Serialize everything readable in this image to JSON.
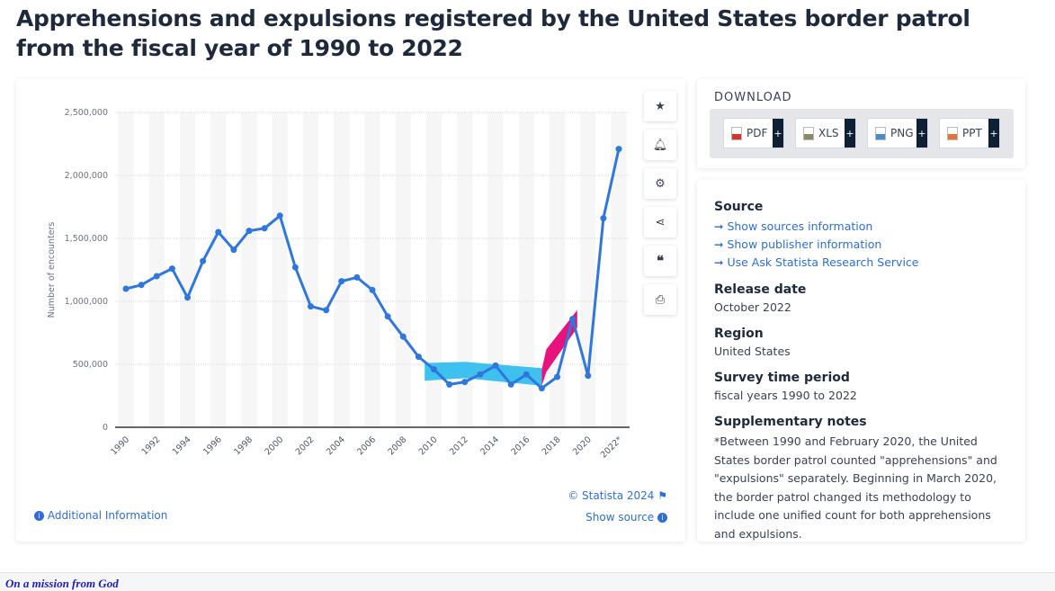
{
  "title": "Apprehensions and expulsions registered by the United States border patrol from the fiscal year of 1990 to 2022",
  "chart_data": {
    "type": "line",
    "title": "",
    "xlabel": "",
    "ylabel": "Number of encounters",
    "ylim": [
      0,
      2500000
    ],
    "yticks": [
      "0",
      "500,000",
      "1,000,000",
      "1,500,000",
      "2,000,000",
      "2,500,000"
    ],
    "xtick_labels": [
      "1990",
      "1992",
      "1994",
      "1996",
      "1998",
      "2000",
      "2002",
      "2004",
      "2006",
      "2008",
      "2010",
      "2012",
      "2014",
      "2016",
      "2018",
      "2020",
      "2022*"
    ],
    "grid": true,
    "color": "#2f76dd",
    "x": [
      1990,
      1991,
      1992,
      1993,
      1994,
      1995,
      1996,
      1997,
      1998,
      1999,
      2000,
      2001,
      2002,
      2003,
      2004,
      2005,
      2006,
      2007,
      2008,
      2009,
      2010,
      2011,
      2012,
      2013,
      2014,
      2015,
      2016,
      2017,
      2018,
      2019,
      2020,
      2021,
      2022
    ],
    "values": [
      1100000,
      1130000,
      1200000,
      1260000,
      1030000,
      1320000,
      1550000,
      1410000,
      1560000,
      1580000,
      1680000,
      1270000,
      960000,
      930000,
      1160000,
      1190000,
      1090000,
      880000,
      720000,
      560000,
      460000,
      340000,
      360000,
      420000,
      490000,
      340000,
      420000,
      310000,
      400000,
      860000,
      410000,
      1660000,
      2210000
    ],
    "highlight_colors": [
      "#3ec1ef",
      "#e8127c"
    ]
  },
  "chart_footer": {
    "copyright": "© Statista 2024",
    "additional_info": "Additional Information",
    "show_source": "Show source"
  },
  "side_icons": [
    "star-icon",
    "bell-icon",
    "gear-icon",
    "share-icon",
    "quote-icon",
    "print-icon"
  ],
  "download": {
    "title": "DOWNLOAD",
    "buttons": [
      {
        "label": "PDF",
        "color": "#d9342b"
      },
      {
        "label": "XLS",
        "color": "#8a8a6a"
      },
      {
        "label": "PNG",
        "color": "#4a8cd0"
      },
      {
        "label": "PPT",
        "color": "#e0763a"
      }
    ]
  },
  "info": {
    "source_title": "Source",
    "source_links": [
      "Show sources information",
      "Show publisher information",
      "Use Ask Statista Research Service"
    ],
    "release_title": "Release date",
    "release": "October 2022",
    "region_title": "Region",
    "region": "United States",
    "period_title": "Survey time period",
    "period": "fiscal years 1990 to 2022",
    "notes_title": "Supplementary notes",
    "notes": "*Between 1990 and February 2020, the United States border patrol counted \"apprehensions\" and \"expulsions\" separately. Beginning in March 2020, the border patrol changed its methodology to include one unified count for both apprehensions and expulsions."
  },
  "footer_text": "On a mission from God"
}
